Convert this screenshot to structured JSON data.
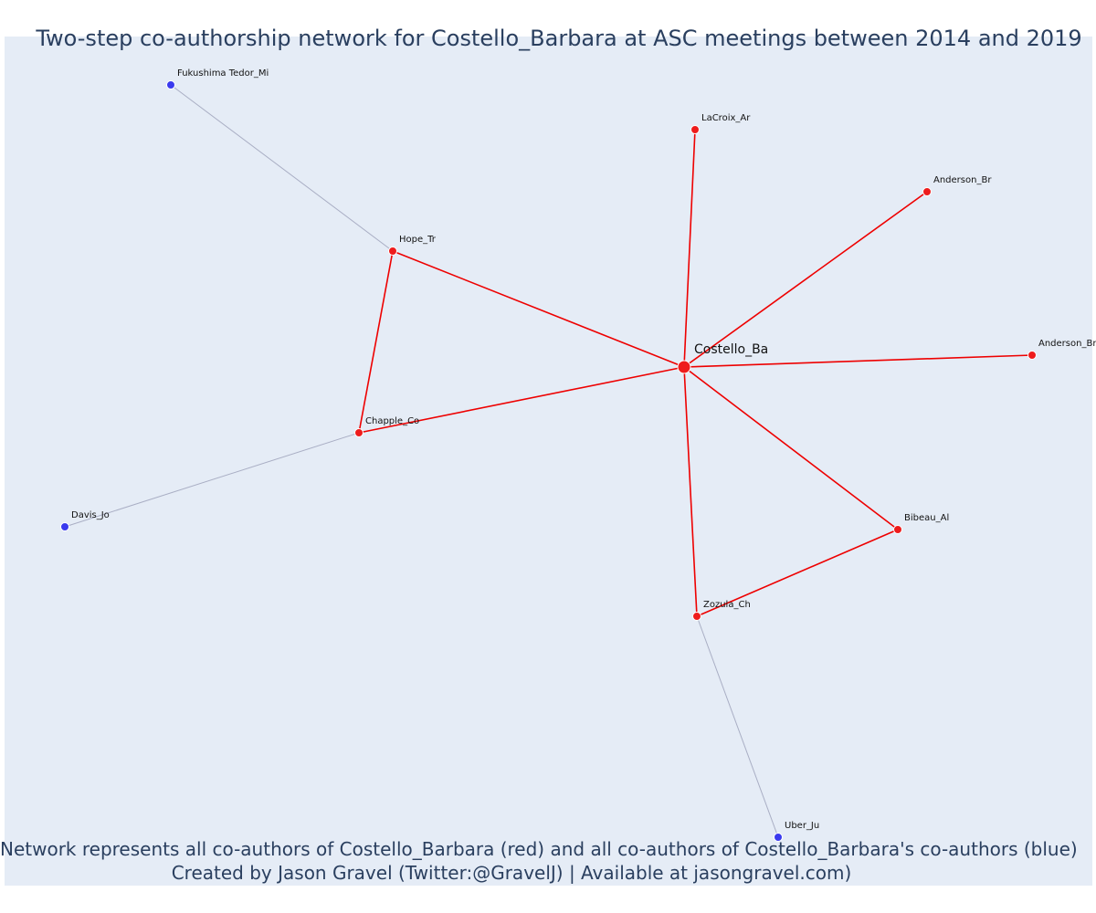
{
  "title": "Two-step co-authorship network for Costello_Barbara at ASC meetings between 2014 and 2019",
  "footnote": {
    "line1": "Network represents all co-authors of Costello_Barbara (red) and all co-authors of Costello_Barbara's co-authors (blue)",
    "line2": "Created by Jason Gravel (Twitter:@GravelJ) | Available at jasongravel.com)"
  },
  "colors": {
    "background": "#e5ecf6",
    "first_step": "#ee1c1c",
    "second_step": "#3a3aee",
    "second_step_edge": "#a9aec4",
    "first_step_edge": "#ee0000",
    "text": "#2a3f5f"
  },
  "nodes": [
    {
      "id": "costello",
      "label": "Costello_Ba",
      "group": "ego"
    },
    {
      "id": "lacroix",
      "label": "LaCroix_Ar",
      "group": "first"
    },
    {
      "id": "anderson1",
      "label": "Anderson_Br",
      "group": "first"
    },
    {
      "id": "anderson2",
      "label": "Anderson_Br",
      "group": "first"
    },
    {
      "id": "hope",
      "label": "Hope_Tr",
      "group": "first"
    },
    {
      "id": "chapple",
      "label": "Chapple_Co",
      "group": "first"
    },
    {
      "id": "bibeau",
      "label": "Bibeau_Al",
      "group": "first"
    },
    {
      "id": "zozula",
      "label": "Zozula_Ch",
      "group": "first"
    },
    {
      "id": "fukushima",
      "label": "Fukushima Tedor_Mi",
      "group": "second"
    },
    {
      "id": "davis",
      "label": "Davis_Jo",
      "group": "second"
    },
    {
      "id": "uber",
      "label": "Uber_Ju",
      "group": "second"
    }
  ],
  "edges": [
    {
      "source": "costello",
      "target": "lacroix",
      "type": "first"
    },
    {
      "source": "costello",
      "target": "anderson1",
      "type": "first"
    },
    {
      "source": "costello",
      "target": "anderson2",
      "type": "first"
    },
    {
      "source": "costello",
      "target": "hope",
      "type": "first"
    },
    {
      "source": "costello",
      "target": "chapple",
      "type": "first"
    },
    {
      "source": "costello",
      "target": "bibeau",
      "type": "first"
    },
    {
      "source": "costello",
      "target": "zozula",
      "type": "first"
    },
    {
      "source": "hope",
      "target": "chapple",
      "type": "first"
    },
    {
      "source": "bibeau",
      "target": "zozula",
      "type": "first"
    },
    {
      "source": "hope",
      "target": "fukushima",
      "type": "second"
    },
    {
      "source": "chapple",
      "target": "davis",
      "type": "second"
    },
    {
      "source": "zozula",
      "target": "uber",
      "type": "second"
    }
  ]
}
